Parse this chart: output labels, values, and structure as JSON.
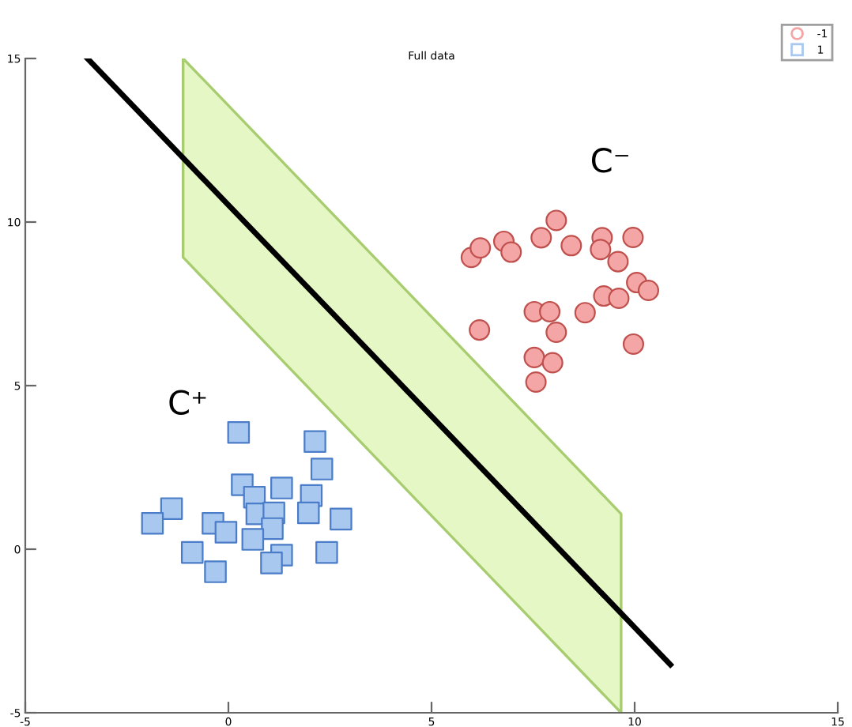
{
  "chart_data": {
    "type": "scatter",
    "title": "Full data",
    "xlim": [
      -5,
      15
    ],
    "ylim": [
      -5,
      15
    ],
    "xticks": [
      -5,
      0,
      5,
      10,
      15
    ],
    "yticks": [
      -5,
      0,
      5,
      10,
      15
    ],
    "grid": false,
    "legend": "top right",
    "series": [
      {
        "name": "-1",
        "color": "#f4a6a6",
        "marker": "circle",
        "x": [
          5.98,
          6.2,
          6.78,
          6.96,
          7.7,
          8.07,
          8.44,
          9.2,
          9.16,
          9.96,
          9.59,
          10.05,
          10.34,
          9.24,
          9.61,
          7.53,
          7.91,
          8.78,
          8.07,
          6.18,
          7.53,
          7.98,
          7.57,
          9.97
        ],
        "values": [
          8.92,
          9.21,
          9.41,
          9.08,
          9.52,
          10.05,
          9.28,
          9.52,
          9.16,
          9.53,
          8.79,
          8.15,
          7.91,
          7.74,
          7.67,
          7.26,
          7.26,
          7.23,
          6.63,
          6.7,
          5.86,
          5.7,
          5.11,
          6.27
        ]
      },
      {
        "name": "1",
        "color": "#a8c8f0",
        "marker": "square",
        "x": [
          0.25,
          2.13,
          2.3,
          0.34,
          1.31,
          0.64,
          2.04,
          -1.4,
          -1.87,
          -0.38,
          -0.06,
          0.7,
          1.12,
          1.97,
          2.77,
          1.08,
          0.6,
          -0.89,
          1.31,
          1.06,
          -0.32,
          2.42
        ],
        "values": [
          3.57,
          3.29,
          2.45,
          1.97,
          1.87,
          1.59,
          1.64,
          1.24,
          0.79,
          0.79,
          0.52,
          1.08,
          1.11,
          1.11,
          0.92,
          0.63,
          0.3,
          -0.1,
          -0.18,
          -0.42,
          -0.69,
          -0.1
        ]
      },
      {
        "type": "line",
        "color": "#000000",
        "x": [
          -3.47,
          -1.115,
          9.667,
          10.88
        ],
        "values": [
          15,
          11.96,
          -1.96,
          -3.53
        ],
        "lower": [
          null,
          8.92,
          -5,
          null
        ],
        "upper": [
          null,
          15,
          1.08,
          null
        ]
      }
    ],
    "annotations": [
      "C⁻",
      "C⁺"
    ]
  }
}
